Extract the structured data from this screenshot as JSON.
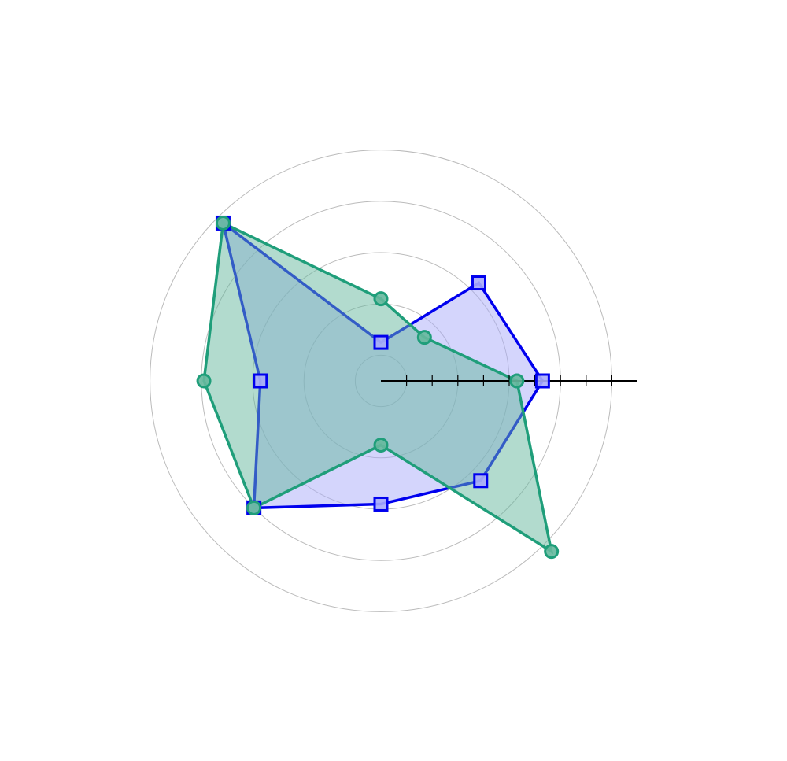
{
  "chart_data": {
    "type": "radar",
    "title": "",
    "axes_count": 8,
    "rlim": [
      0,
      9
    ],
    "radial_gridlines": [
      1,
      3,
      5,
      7,
      9
    ],
    "radial_ticks": [
      0,
      1,
      2,
      3,
      4,
      5,
      6,
      7,
      8,
      9,
      10
    ],
    "grid": true,
    "legend": "none",
    "series": [
      {
        "values": [
          6.3,
          5.4,
          1.5,
          8.7,
          4.7,
          7.0,
          4.8,
          5.5
        ],
        "color": "#0000ee",
        "fill": "#a9abf9",
        "marker": "square"
      },
      {
        "values": [
          5.3,
          2.4,
          3.2,
          8.7,
          6.9,
          7.0,
          2.5,
          9.4
        ],
        "color": "#1f9e7a",
        "fill": "#66b89d",
        "marker": "circle"
      }
    ]
  }
}
